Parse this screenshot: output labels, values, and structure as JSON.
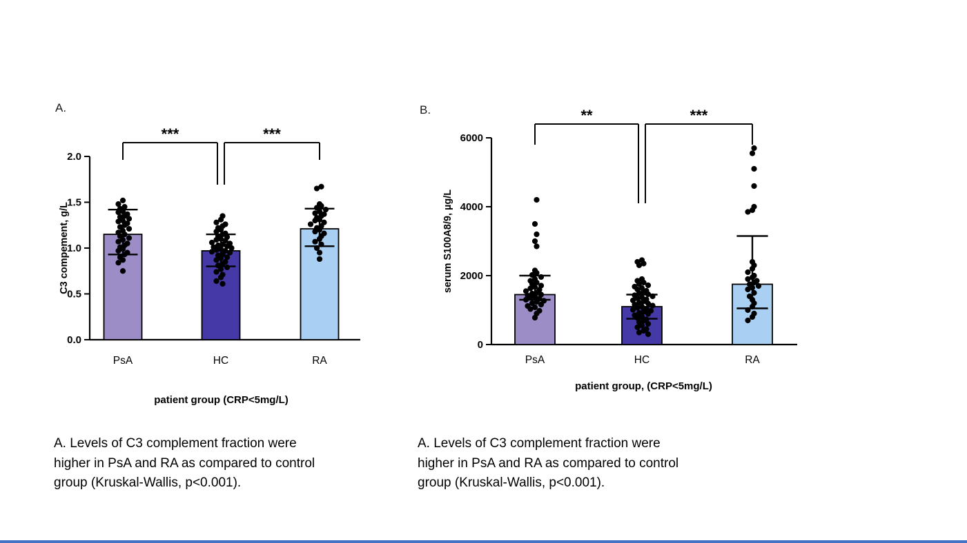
{
  "panels": [
    {
      "label": "A."
    },
    {
      "label": "B."
    }
  ],
  "captions": {
    "left": "A. Levels of C3 complement fraction were higher in PsA and RA as compared to control group (Kruskal-Wallis, p<0.001).",
    "right": "A. Levels of C3 complement fraction were higher in PsA and RA as compared to control group (Kruskal-Wallis, p<0.001)."
  },
  "page": {
    "bottom_line_color": "#4472c4",
    "background": "#ffffff"
  },
  "chart_data": [
    {
      "type": "bar",
      "overlay": "scatter",
      "panel": "A",
      "categories": [
        "PsA",
        "HC",
        "RA"
      ],
      "values": [
        1.15,
        0.97,
        1.21
      ],
      "error_upper": [
        1.42,
        1.15,
        1.43
      ],
      "error_lower": [
        0.93,
        0.8,
        1.02
      ],
      "bar_colors": [
        "#9c8dc7",
        "#4539a8",
        "#a9cff2"
      ],
      "ylabel": "C3 compement, g/L",
      "xlabel": "patient group (CRP<5mg/L)",
      "ylim": [
        0,
        2.0
      ],
      "ytick_labels": [
        "0.0",
        "0.5",
        "1.0",
        "1.5",
        "2.0"
      ],
      "significance": [
        {
          "groups": [
            "PsA",
            "HC"
          ],
          "label": "***"
        },
        {
          "groups": [
            "HC",
            "RA"
          ],
          "label": "***"
        }
      ],
      "scatter": {
        "PsA": [
          1.52,
          1.48,
          1.45,
          1.43,
          1.4,
          1.39,
          1.37,
          1.35,
          1.34,
          1.32,
          1.3,
          1.29,
          1.27,
          1.25,
          1.23,
          1.21,
          1.19,
          1.17,
          1.15,
          1.13,
          1.11,
          1.09,
          1.07,
          1.05,
          1.03,
          1.01,
          0.99,
          0.97,
          0.95,
          0.93,
          0.9,
          0.87,
          0.84,
          0.75
        ],
        "HC": [
          1.35,
          1.31,
          1.28,
          1.26,
          1.24,
          1.22,
          1.2,
          1.18,
          1.16,
          1.15,
          1.13,
          1.12,
          1.1,
          1.09,
          1.08,
          1.06,
          1.05,
          1.04,
          1.03,
          1.02,
          1.01,
          1.0,
          0.99,
          0.98,
          0.97,
          0.96,
          0.95,
          0.93,
          0.92,
          0.9,
          0.89,
          0.87,
          0.85,
          0.83,
          0.81,
          0.79,
          0.77,
          0.74,
          0.71,
          0.68,
          0.64,
          0.61
        ],
        "RA": [
          1.67,
          1.65,
          1.48,
          1.46,
          1.44,
          1.42,
          1.4,
          1.38,
          1.37,
          1.35,
          1.33,
          1.31,
          1.3,
          1.28,
          1.26,
          1.24,
          1.22,
          1.2,
          1.18,
          1.16,
          1.13,
          1.1,
          1.07,
          1.04,
          1.0,
          0.95,
          0.88
        ]
      }
    },
    {
      "type": "bar",
      "overlay": "scatter",
      "panel": "B",
      "categories": [
        "PsA",
        "HC",
        "RA"
      ],
      "values": [
        1450,
        1100,
        1750
      ],
      "error_upper": [
        2000,
        1450,
        3150
      ],
      "error_lower": [
        1300,
        750,
        1050
      ],
      "bar_colors": [
        "#9c8dc7",
        "#4539a8",
        "#a9cff2"
      ],
      "ylabel": "serum S100A8/9, µg/L",
      "xlabel": "patient group, (CRP<5mg/L)",
      "ylim": [
        0,
        6000
      ],
      "ytick_labels": [
        "0",
        "2000",
        "4000",
        "6000"
      ],
      "significance": [
        {
          "groups": [
            "PsA",
            "HC"
          ],
          "label": "**"
        },
        {
          "groups": [
            "HC",
            "RA"
          ],
          "label": "***"
        }
      ],
      "scatter": {
        "PsA": [
          4200,
          3500,
          3200,
          3000,
          2850,
          2150,
          2080,
          2020,
          1960,
          1900,
          1850,
          1800,
          1760,
          1710,
          1670,
          1630,
          1590,
          1550,
          1510,
          1480,
          1450,
          1420,
          1390,
          1360,
          1330,
          1300,
          1270,
          1240,
          1200,
          1160,
          1120,
          1080,
          1030,
          980,
          900,
          780
        ],
        "HC": [
          2450,
          2400,
          2350,
          2300,
          1900,
          1850,
          1800,
          1760,
          1720,
          1680,
          1640,
          1600,
          1560,
          1520,
          1490,
          1460,
          1430,
          1400,
          1370,
          1340,
          1310,
          1280,
          1250,
          1220,
          1190,
          1160,
          1130,
          1100,
          1070,
          1040,
          1010,
          980,
          950,
          920,
          890,
          850,
          810,
          770,
          730,
          690,
          650,
          600,
          550,
          500,
          450,
          400,
          350,
          300
        ],
        "RA": [
          5700,
          5550,
          5100,
          4600,
          4000,
          3900,
          3850,
          2400,
          2300,
          2200,
          2100,
          2000,
          1950,
          1900,
          1850,
          1800,
          1750,
          1700,
          1650,
          1600,
          1500,
          1400,
          1300,
          1200,
          1100,
          1000,
          900,
          800,
          700
        ]
      }
    }
  ]
}
